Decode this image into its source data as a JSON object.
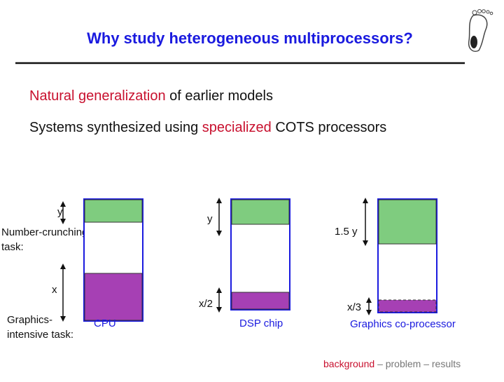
{
  "header": {
    "title": "Why study heterogeneous multiprocessors?"
  },
  "bullets": [
    {
      "highlight": "Natural generalization",
      "rest": "of earlier models"
    },
    {
      "lead": "Systems synthesized using",
      "highlight": "specialized",
      "rest": "COTS processors"
    }
  ],
  "diagram": {
    "task_labels": {
      "number_crunching": [
        "Number-crunching",
        "task:"
      ],
      "graphics_intensive": [
        "Graphics-",
        "intensive task:"
      ]
    },
    "processors": [
      {
        "name": "CPU",
        "compute_label": "y",
        "graphics_label": "x"
      },
      {
        "name": "DSP chip",
        "compute_label": "y",
        "graphics_label": "x/2"
      },
      {
        "name": "Graphics co-processor",
        "compute_label": "1.5 y",
        "graphics_label": "x/3"
      }
    ]
  },
  "footer": {
    "current": "background",
    "rest": "– problem – results"
  }
}
